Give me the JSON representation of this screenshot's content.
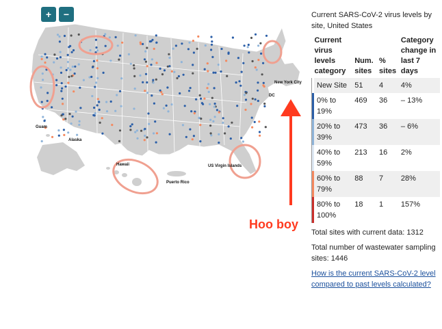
{
  "zoom": {
    "in_label": "+",
    "out_label": "−"
  },
  "map": {
    "labels": {
      "guam": "Guam",
      "alaska": "Alaska",
      "hawaii": "Hawaii",
      "puerto_rico": "Puerto Rico",
      "usvi": "US Virgin Islands",
      "nyc": "New York City",
      "dc": "DC"
    },
    "land_color": "#cfcfcf",
    "highlight_color": "#f0a090"
  },
  "annotation": {
    "text": "Hoo boy",
    "color": "#ff3a1f"
  },
  "panel": {
    "title": "Current SARS-CoV-2 virus levels by site, United States",
    "headers": [
      "Current virus levels category",
      "Num. sites",
      "% sites",
      "Category change in last 7 days"
    ],
    "rows": [
      {
        "category": "New Site",
        "sites": "51",
        "pct": "4",
        "change": "4%",
        "color": "#ffffff"
      },
      {
        "category": "0% to 19%",
        "sites": "469",
        "pct": "36",
        "change": "– 13%",
        "color": "#2c5fa8"
      },
      {
        "category": "20% to 39%",
        "sites": "473",
        "pct": "36",
        "change": "– 6%",
        "color": "#8fb4d9"
      },
      {
        "category": "40% to 59%",
        "sites": "213",
        "pct": "16",
        "change": "2%",
        "color": "#dde8f3"
      },
      {
        "category": "60% to 79%",
        "sites": "88",
        "pct": "7",
        "change": "28%",
        "color": "#f4895f"
      },
      {
        "category": "80% to 100%",
        "sites": "18",
        "pct": "1",
        "change": "157%",
        "color": "#c9302c"
      }
    ],
    "total_current": "Total sites with current data: 1312",
    "total_sampling": "Total number of wastewater sampling sites: 1446",
    "link": "How is the current SARS-CoV-2 level compared to past levels calculated?"
  }
}
